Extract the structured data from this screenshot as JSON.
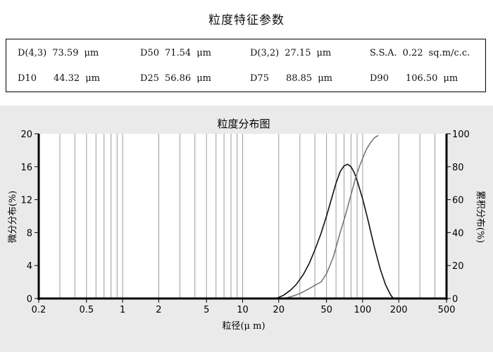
{
  "params": {
    "title": "粒度特征参数",
    "row1": [
      {
        "label": "D(4,3)",
        "value": "73.59",
        "unit": "μm"
      },
      {
        "label": "D50",
        "value": "71.54",
        "unit": "μm"
      },
      {
        "label": "D(3,2)",
        "value": "27.15",
        "unit": "μm"
      },
      {
        "label": "S.S.A.",
        "value": "0.22",
        "unit": "sq.m/c.c."
      }
    ],
    "row2": [
      {
        "label": "D10",
        "value": "44.32",
        "unit": "μm"
      },
      {
        "label": "D25",
        "value": "56.86",
        "unit": "μm"
      },
      {
        "label": "D75",
        "value": "88.85",
        "unit": "μm"
      },
      {
        "label": "D90",
        "value": "106.50",
        "unit": "μm"
      }
    ]
  },
  "chart_data": {
    "type": "line",
    "title": "粒度分布图",
    "xlabel": "粒径(μ m)",
    "ylabel": "微分分布(%)",
    "y2label": "累积分布(%)",
    "xscale": "log",
    "xlim": [
      0.2,
      500
    ],
    "ylim": [
      0,
      20
    ],
    "y2lim": [
      0,
      100
    ],
    "xticks": [
      "0.2",
      "0.5",
      "1",
      "2",
      "5",
      "10",
      "20",
      "50",
      "100",
      "200",
      "500"
    ],
    "yticks": [
      "0",
      "4",
      "8",
      "12",
      "16",
      "20"
    ],
    "y2ticks": [
      "0",
      "20",
      "40",
      "60",
      "80",
      "100"
    ],
    "grid": "vertical",
    "series": [
      {
        "axis": "left",
        "color": "#111111",
        "x": [
          19,
          22,
          25,
          28,
          32,
          36,
          40,
          45,
          50,
          55,
          60,
          65,
          70,
          75,
          80,
          85,
          90,
          100,
          110,
          125,
          140,
          155,
          170,
          180
        ],
        "y": [
          0,
          0.4,
          1.0,
          1.7,
          2.9,
          4.3,
          5.9,
          7.9,
          10.0,
          12.1,
          14.0,
          15.4,
          16.1,
          16.3,
          16.0,
          15.3,
          14.3,
          12.1,
          9.7,
          6.3,
          3.6,
          1.7,
          0.5,
          0
        ]
      },
      {
        "axis": "right",
        "color": "#777777",
        "x": [
          22,
          25,
          30,
          35,
          40,
          45,
          50,
          56.86,
          60,
          65,
          71.54,
          80,
          88.85,
          95,
          106.5,
          115,
          125,
          135
        ],
        "y": [
          0,
          1,
          3,
          5.5,
          8,
          10,
          15,
          25,
          31,
          40,
          50,
          63,
          75,
          81,
          90,
          94,
          97.5,
          99
        ]
      }
    ]
  }
}
